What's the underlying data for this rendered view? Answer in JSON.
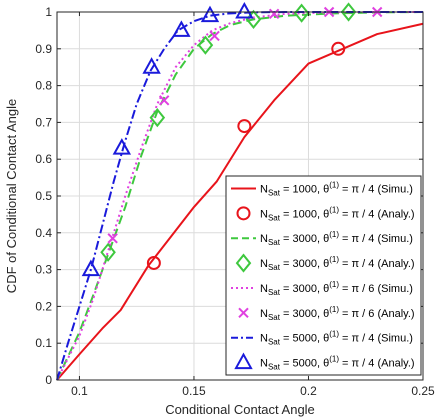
{
  "chart_data": {
    "type": "line",
    "xlabel": "Conditional Contact Angle",
    "ylabel": "CDF of Conditional Contact Angle",
    "xlim": [
      0.0902,
      0.25
    ],
    "ylim": [
      0,
      1
    ],
    "xticks": [
      0.1,
      0.15,
      0.2,
      0.25
    ],
    "xtick_labels": [
      "0.1",
      "0.15",
      "0.2",
      "0.25"
    ],
    "yticks": [
      0,
      0.1,
      0.2,
      0.3,
      0.4,
      0.5,
      0.6,
      0.7,
      0.8,
      0.9,
      1
    ],
    "ytick_labels": [
      "0",
      "0.1",
      "0.2",
      "0.3",
      "0.4",
      "0.5",
      "0.6",
      "0.7",
      "0.8",
      "0.9",
      "1"
    ],
    "grid": true,
    "legend_position": "bottom-right",
    "series": [
      {
        "name": "N_Sat = 1000, θ(1) = π / 4 (Simu.)",
        "label_main": "N",
        "label_sub": "Sat",
        "label_mid": " = 1000, θ",
        "label_sup": "(1)",
        "label_end": " = π / 4 (Simu.)",
        "color": "#e8141b",
        "style": "solid",
        "marker": "none",
        "x": [
          0.0902,
          0.1,
          0.11,
          0.118,
          0.13,
          0.14,
          0.15,
          0.16,
          0.172,
          0.185,
          0.2,
          0.215,
          0.23,
          0.25
        ],
        "y": [
          0,
          0.07,
          0.14,
          0.19,
          0.31,
          0.39,
          0.47,
          0.54,
          0.66,
          0.76,
          0.86,
          0.9,
          0.94,
          0.968
        ]
      },
      {
        "name": "N_Sat = 1000, θ(1) = π / 4 (Analy.)",
        "label_main": "N",
        "label_sub": "Sat",
        "label_mid": " = 1000, θ",
        "label_sup": "(1)",
        "label_end": " = π / 4 (Analy.)",
        "color": "#e8141b",
        "style": "none",
        "marker": "circle",
        "x": [
          0.1325,
          0.172,
          0.213
        ],
        "y": [
          0.318,
          0.69,
          0.9
        ]
      },
      {
        "name": "N_Sat = 3000, θ(1) = π / 4 (Simu.)",
        "label_main": "N",
        "label_sub": "Sat",
        "label_mid": " = 3000, θ",
        "label_sup": "(1)",
        "label_end": " = π / 4 (Simu.)",
        "color": "#3ec83e",
        "style": "dash",
        "marker": "none",
        "x": [
          0.0902,
          0.1,
          0.106,
          0.113,
          0.12,
          0.127,
          0.134,
          0.142,
          0.15,
          0.158,
          0.166,
          0.176,
          0.19,
          0.21,
          0.23,
          0.25
        ],
        "y": [
          0,
          0.13,
          0.23,
          0.35,
          0.47,
          0.61,
          0.73,
          0.83,
          0.9,
          0.94,
          0.965,
          0.98,
          0.99,
          0.996,
          0.999,
          1.0
        ]
      },
      {
        "name": "N_Sat = 3000, θ(1) = π / 4 (Analy.)",
        "label_main": "N",
        "label_sub": "Sat",
        "label_mid": " = 3000, θ",
        "label_sup": "(1)",
        "label_end": " = π / 4 (Analy.)",
        "color": "#3ec83e",
        "style": "none",
        "marker": "diamond",
        "x": [
          0.1125,
          0.134,
          0.155,
          0.176,
          0.197,
          0.2175
        ],
        "y": [
          0.347,
          0.713,
          0.91,
          0.98,
          0.997,
          1.0
        ]
      },
      {
        "name": "N_Sat = 3000, θ(1) = π / 6 (Simu.)",
        "label_main": "N",
        "label_sub": "Sat",
        "label_mid": " = 3000, θ",
        "label_sup": "(1)",
        "label_end": " = π / 6 (Simu.)",
        "color": "#e040e0",
        "style": "dot",
        "marker": "none",
        "x": [
          0.0902,
          0.1,
          0.106,
          0.113,
          0.12,
          0.127,
          0.134,
          0.142,
          0.15,
          0.158,
          0.166,
          0.176,
          0.19,
          0.21,
          0.23,
          0.25
        ],
        "y": [
          0,
          0.12,
          0.22,
          0.36,
          0.5,
          0.63,
          0.75,
          0.85,
          0.91,
          0.95,
          0.97,
          0.985,
          0.995,
          0.999,
          1.0,
          1.0
        ]
      },
      {
        "name": "N_Sat = 3000, θ(1) = π / 6 (Analy.)",
        "label_main": "N",
        "label_sub": "Sat",
        "label_mid": " = 3000, θ",
        "label_sup": "(1)",
        "label_end": " = π / 6 (Analy.)",
        "color": "#e040e0",
        "style": "none",
        "marker": "x",
        "x": [
          0.1145,
          0.137,
          0.159,
          0.185,
          0.209,
          0.23
        ],
        "y": [
          0.385,
          0.76,
          0.935,
          0.995,
          1.0,
          1.0
        ]
      },
      {
        "name": "N_Sat = 5000, θ(1) = π / 4 (Simu.)",
        "label_main": "N",
        "label_sub": "Sat",
        "label_mid": " = 5000, θ",
        "label_sup": "(1)",
        "label_end": " = π / 4 (Simu.)",
        "color": "#1a1adb",
        "style": "dashdot",
        "marker": "none",
        "x": [
          0.0902,
          0.095,
          0.1,
          0.105,
          0.11,
          0.115,
          0.12,
          0.125,
          0.131,
          0.137,
          0.143,
          0.15,
          0.157,
          0.165,
          0.175,
          0.19,
          0.21,
          0.25
        ],
        "y": [
          0,
          0.1,
          0.2,
          0.3,
          0.42,
          0.54,
          0.65,
          0.75,
          0.84,
          0.9,
          0.95,
          0.975,
          0.99,
          0.996,
          0.999,
          1.0,
          1.0,
          1.0
        ]
      },
      {
        "name": "N_Sat = 5000, θ(1) = π / 4 (Analy.)",
        "label_main": "N",
        "label_sub": "Sat",
        "label_mid": " = 5000, θ",
        "label_sup": "(1)",
        "label_end": " = π / 4 (Analy.)",
        "color": "#1a1adb",
        "style": "none",
        "marker": "triangle",
        "x": [
          0.105,
          0.1185,
          0.1315,
          0.1445,
          0.157,
          0.172
        ],
        "y": [
          0.3,
          0.63,
          0.85,
          0.95,
          0.99,
          1.0
        ]
      }
    ]
  }
}
